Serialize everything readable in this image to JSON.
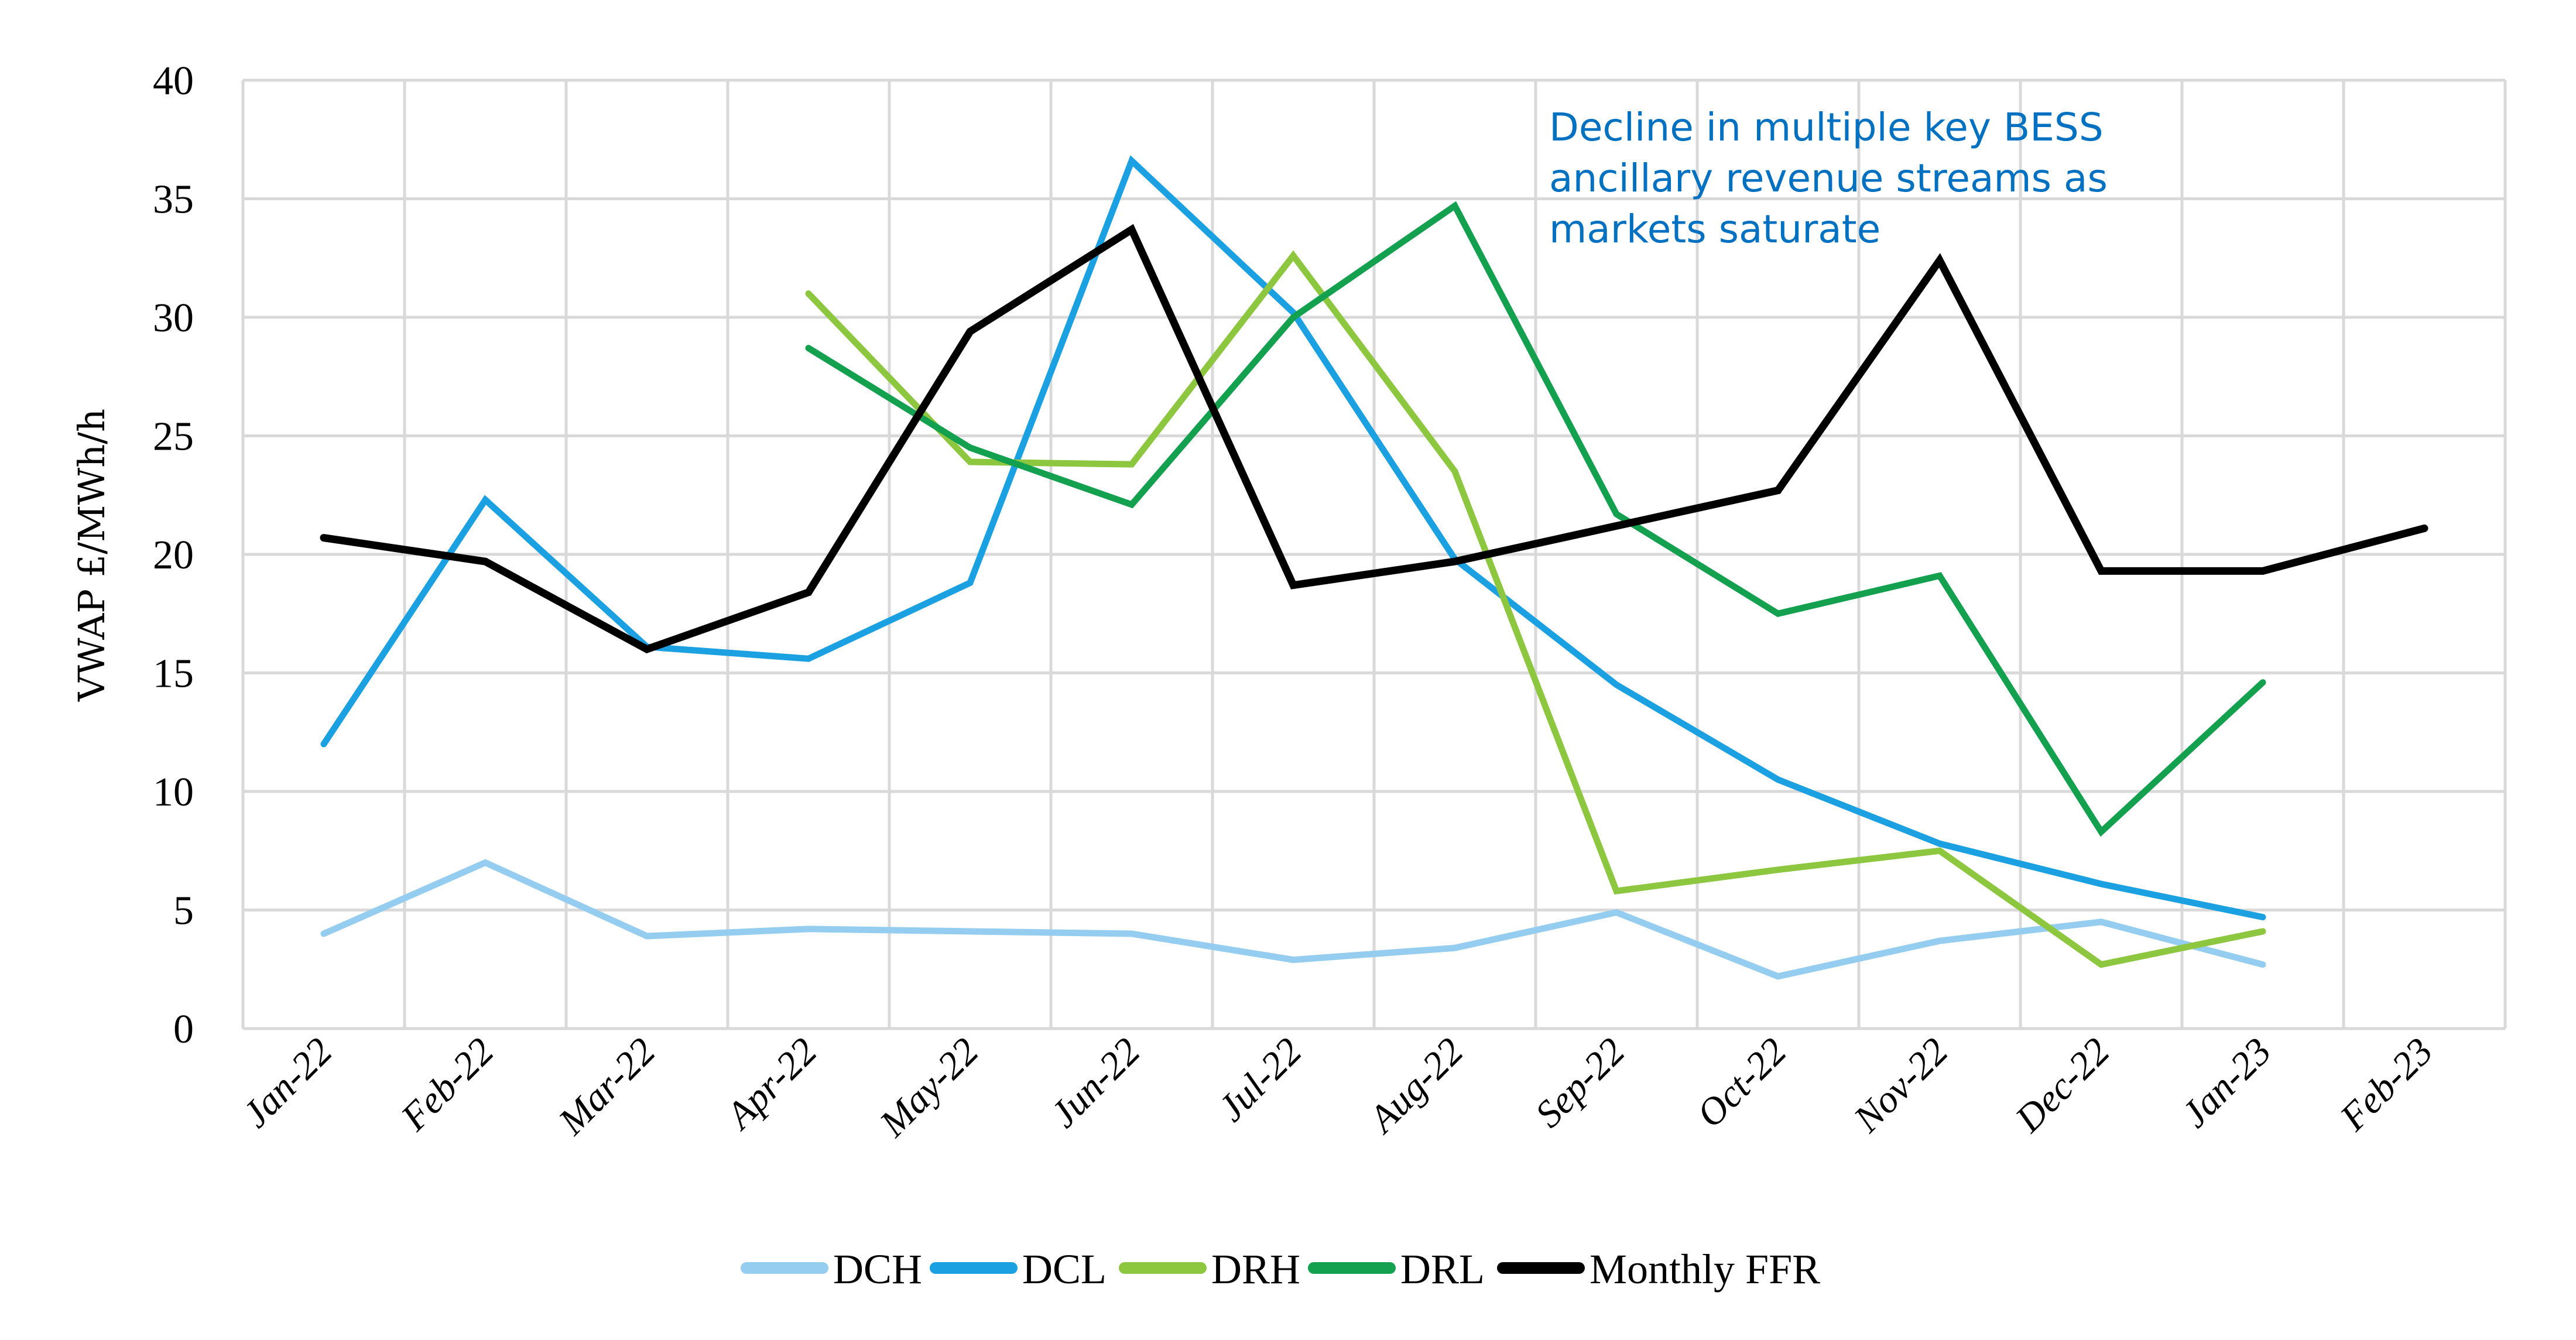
{
  "chart_data": {
    "type": "line",
    "title": "",
    "xlabel": "",
    "ylabel": "VWAP £/MWh/h",
    "ylim": [
      0,
      40
    ],
    "yticks": [
      0,
      5,
      10,
      15,
      20,
      25,
      30,
      35,
      40
    ],
    "ytick_labels": [
      "0",
      "5",
      "10",
      "15",
      "20",
      "25",
      "30",
      "35",
      "40"
    ],
    "grid": true,
    "legend_position": "bottom",
    "categories": [
      "Jan-22",
      "Feb-22",
      "Mar-22",
      "Apr-22",
      "May-22",
      "Jun-22",
      "Jul-22",
      "Aug-22",
      "Sep-22",
      "Oct-22",
      "Nov-22",
      "Dec-22",
      "Jan-23",
      "Feb-23"
    ],
    "series": [
      {
        "name": "DCH",
        "color": "#94CDF0",
        "values": [
          4.0,
          7.0,
          3.9,
          4.2,
          4.1,
          4.0,
          2.9,
          3.4,
          4.9,
          2.2,
          3.7,
          4.5,
          2.7,
          null
        ]
      },
      {
        "name": "DCL",
        "color": "#1BA1E2",
        "values": [
          12.0,
          22.3,
          16.1,
          15.6,
          18.8,
          36.6,
          30.2,
          19.8,
          14.5,
          10.5,
          7.8,
          6.1,
          4.7,
          null
        ]
      },
      {
        "name": "DRH",
        "color": "#8DC63F",
        "values": [
          null,
          null,
          null,
          31.0,
          23.9,
          23.8,
          32.6,
          23.5,
          5.8,
          6.7,
          7.5,
          2.7,
          4.1,
          null
        ]
      },
      {
        "name": "DRL",
        "color": "#13A04F",
        "values": [
          null,
          null,
          null,
          28.7,
          24.5,
          22.1,
          30.0,
          34.7,
          21.7,
          17.5,
          19.1,
          8.3,
          14.6,
          null
        ]
      },
      {
        "name": "Monthly FFR",
        "color": "#000000",
        "values": [
          20.7,
          19.7,
          16.0,
          18.4,
          29.4,
          33.7,
          18.7,
          19.7,
          21.2,
          22.7,
          32.4,
          19.3,
          19.3,
          21.1
        ]
      }
    ],
    "annotation": {
      "lines": [
        "Decline in multiple key BESS",
        "ancillary revenue streams as",
        "markets saturate"
      ],
      "color": "#0070C0"
    }
  }
}
